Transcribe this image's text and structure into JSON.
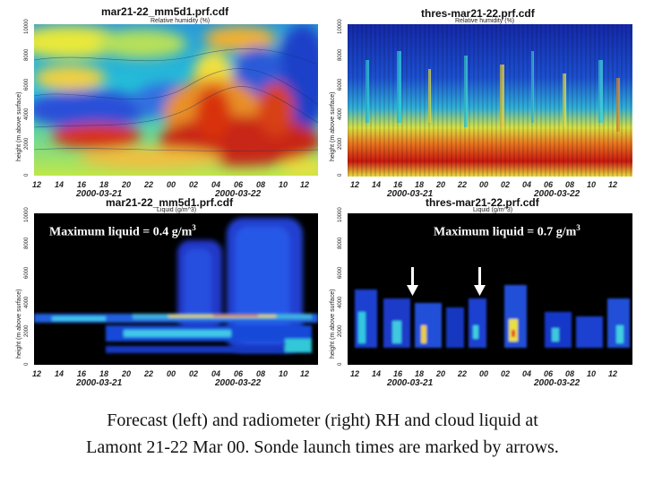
{
  "panels": {
    "tl": {
      "title": "mar21-22_mm5d1.prf.cdf",
      "subtitle": "Relative humidity (%)",
      "ylabel": "height (m above surface)",
      "yticks": [
        "0",
        "2000",
        "4000",
        "6000",
        "8000",
        "10000"
      ],
      "xticks": [
        "12",
        "14",
        "16",
        "18",
        "20",
        "22",
        "00",
        "02",
        "04",
        "06",
        "08",
        "10",
        "12"
      ],
      "dates": [
        "2000-03-21",
        "2000-03-22"
      ]
    },
    "tr": {
      "title": "thres-mar21-22.prf.cdf",
      "subtitle": "Relative humidity (%)",
      "ylabel": "height (m above surface)",
      "yticks": [
        "0",
        "2000",
        "4000",
        "6000",
        "8000",
        "10000"
      ],
      "xticks": [
        "12",
        "14",
        "16",
        "18",
        "20",
        "22",
        "00",
        "02",
        "04",
        "06",
        "08",
        "10",
        "12"
      ],
      "dates": [
        "2000-03-21",
        "2000-03-22"
      ]
    },
    "bl": {
      "title": "mar21-22_mm5d1.prf.cdf",
      "subtitle": "Liquid (g/m^3)",
      "ylabel": "height (m above surface)",
      "yticks": [
        "0",
        "2000",
        "4000",
        "6000",
        "8000",
        "10000"
      ],
      "xticks": [
        "12",
        "14",
        "16",
        "18",
        "20",
        "22",
        "00",
        "02",
        "04",
        "06",
        "08",
        "10",
        "12"
      ],
      "dates": [
        "2000-03-21",
        "2000-03-22"
      ],
      "annotation_text": "Maximum liquid = 0.4 g/m",
      "annotation_sup": "3"
    },
    "br": {
      "title": "thres-mar21-22.prf.cdf",
      "subtitle": "Liquid (g/m^3)",
      "ylabel": "height (m above surface)",
      "yticks": [
        "0",
        "2000",
        "4000",
        "6000",
        "8000",
        "10000"
      ],
      "xticks": [
        "12",
        "14",
        "16",
        "18",
        "20",
        "22",
        "00",
        "02",
        "04",
        "06",
        "08",
        "10",
        "12"
      ],
      "dates": [
        "2000-03-21",
        "2000-03-22"
      ],
      "annotation_text": "Maximum liquid = 0.7 g/m",
      "annotation_sup": "3"
    }
  },
  "caption": {
    "line1": "Forecast (left) and radiometer (right) RH and cloud liquid at",
    "line2": "Lamont 21-22 Mar 00. Sonde launch times are marked by arrows."
  },
  "chart_data": [
    {
      "type": "heatmap",
      "title": "mar21-22_mm5d1.prf.cdf",
      "subtitle": "Relative humidity (%)",
      "ylabel": "height (m above surface)",
      "ylim": [
        0,
        10000
      ],
      "x": [
        "12",
        "14",
        "16",
        "18",
        "20",
        "22",
        "00",
        "02",
        "04",
        "06",
        "08",
        "10",
        "12"
      ],
      "dates": [
        "2000-03-21",
        "2000-03-22"
      ]
    },
    {
      "type": "heatmap",
      "title": "thres-mar21-22.prf.cdf",
      "subtitle": "Relative humidity (%)",
      "ylabel": "height (m above surface)",
      "ylim": [
        0,
        10000
      ],
      "x": [
        "12",
        "14",
        "16",
        "18",
        "20",
        "22",
        "00",
        "02",
        "04",
        "06",
        "08",
        "10",
        "12"
      ],
      "dates": [
        "2000-03-21",
        "2000-03-22"
      ]
    },
    {
      "type": "heatmap",
      "title": "mar21-22_mm5d1.prf.cdf",
      "subtitle": "Liquid (g/m^3)",
      "ylabel": "height (m above surface)",
      "ylim": [
        0,
        10000
      ],
      "x": [
        "12",
        "14",
        "16",
        "18",
        "20",
        "22",
        "00",
        "02",
        "04",
        "06",
        "08",
        "10",
        "12"
      ],
      "dates": [
        "2000-03-21",
        "2000-03-22"
      ],
      "annotation": "Maximum liquid = 0.4 g/m3"
    },
    {
      "type": "heatmap",
      "title": "thres-mar21-22.prf.cdf",
      "subtitle": "Liquid (g/m^3)",
      "ylabel": "height (m above surface)",
      "ylim": [
        0,
        10000
      ],
      "x": [
        "12",
        "14",
        "16",
        "18",
        "20",
        "22",
        "00",
        "02",
        "04",
        "06",
        "08",
        "10",
        "12"
      ],
      "dates": [
        "2000-03-21",
        "2000-03-22"
      ],
      "annotation": "Maximum liquid = 0.7 g/m3",
      "sonde_launch_arrows": [
        "18",
        "00"
      ]
    }
  ]
}
